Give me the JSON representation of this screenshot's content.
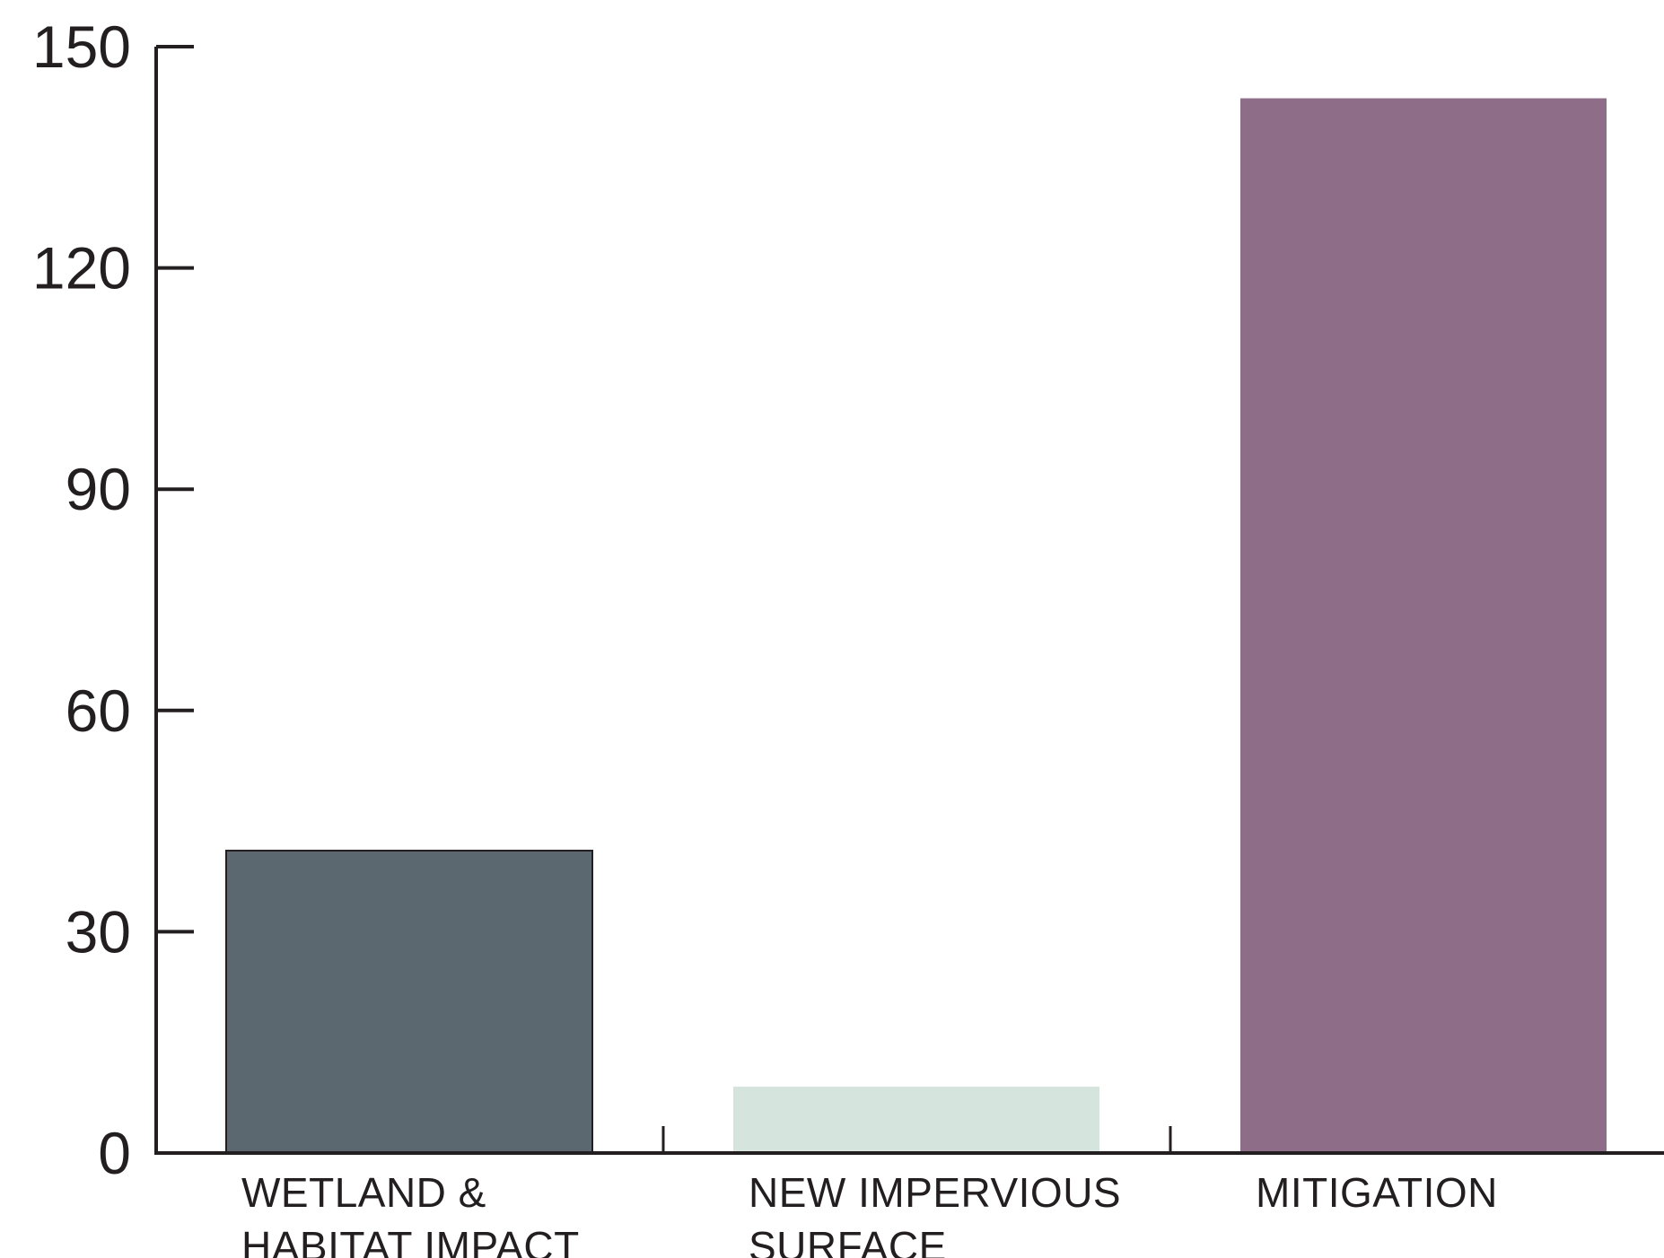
{
  "chart_data": {
    "type": "bar",
    "title": "",
    "xlabel": "",
    "ylabel": "",
    "ylim": [
      0,
      150
    ],
    "yticks": [
      0,
      30,
      60,
      90,
      120,
      150
    ],
    "grid": false,
    "categories": [
      [
        "WETLAND &",
        "HABITAT IMPACT"
      ],
      [
        "NEW IMPERVIOUS",
        "SURFACE"
      ],
      [
        "MITIGATION"
      ]
    ],
    "values": [
      41,
      9,
      143
    ],
    "colors": [
      "#5c6870",
      "#d5e5dd",
      "#8e6d89"
    ],
    "axis_color": "#231f20"
  }
}
